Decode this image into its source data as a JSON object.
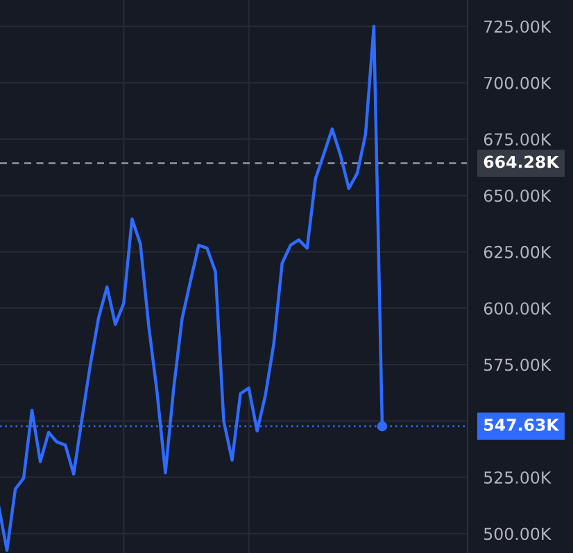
{
  "chart_data": {
    "type": "line",
    "categories": [
      null,
      null,
      null,
      null,
      null,
      null,
      null,
      null,
      null,
      null,
      null,
      null,
      null,
      null,
      null,
      null,
      null,
      null,
      null,
      null,
      null,
      null,
      null,
      null,
      null,
      null,
      null,
      null,
      null,
      null,
      null,
      null,
      null,
      null,
      null,
      null,
      null,
      null,
      null,
      null,
      null,
      null,
      null,
      null,
      null,
      null,
      null
    ],
    "series": [
      {
        "color": "#2f6bff",
        "values": [
          512.3,
          492.6,
          519.7,
          524.6,
          554.7,
          531.9,
          544.9,
          540.6,
          539.3,
          526.4,
          551.0,
          575.0,
          595.9,
          609.4,
          592.8,
          602.1,
          639.6,
          628.5,
          592.2,
          562.7,
          527.0,
          564.6,
          595.3,
          611.9,
          627.9,
          626.6,
          616.2,
          549.8,
          532.6,
          562.1,
          564.6,
          545.5,
          561.5,
          584.2,
          619.9,
          627.9,
          630.3,
          626.6,
          657.4,
          668.4,
          679.5,
          667.8,
          653.1,
          659.8,
          677.0,
          725.0,
          547.6
        ]
      }
    ],
    "ylim": [
      491.4,
      736.7
    ],
    "yticks": [
      {
        "value": 500,
        "label": "500.00K"
      },
      {
        "value": 525,
        "label": "525.00K"
      },
      {
        "value": 550,
        "label": null
      },
      {
        "value": 575,
        "label": "575.00K"
      },
      {
        "value": 600,
        "label": "600.00K"
      },
      {
        "value": 625,
        "label": "625.00K"
      },
      {
        "value": 650,
        "label": "650.00K"
      },
      {
        "value": 675,
        "label": "675.00K"
      },
      {
        "value": 700,
        "label": "700.00K"
      },
      {
        "value": 725,
        "label": "725.00K"
      }
    ],
    "tick_labels": "y",
    "grid": true,
    "line_style": "solid",
    "ref_lines": [
      {
        "axis": "y",
        "value": 664.28,
        "label": "664.28K",
        "color": "#9598a1",
        "line_style": "dashed"
      },
      {
        "axis": "y",
        "value": 547.63,
        "label": "547.63K",
        "color": "#2f6bff",
        "line_style": "dotted"
      }
    ]
  }
}
